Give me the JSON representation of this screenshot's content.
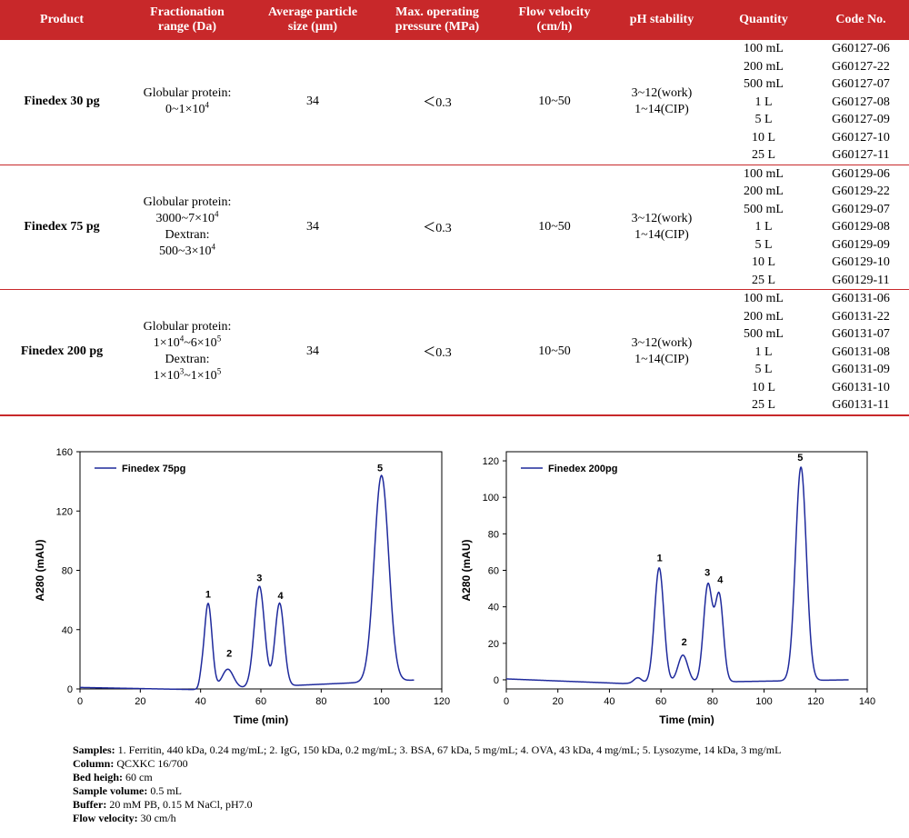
{
  "table": {
    "headers": [
      "Product",
      "Fractionation\nrange (Da)",
      "Average particle\nsize (μm)",
      "Max. operating\npressure (MPa)",
      "Flow velocity\n(cm/h)",
      "pH stability",
      "Quantity",
      "Code No."
    ],
    "rows": [
      {
        "product": "Finedex 30 pg",
        "range": [
          {
            "t": "Globular protein:"
          },
          {
            "t": "0~1×10",
            "sup": "4"
          }
        ],
        "size": "34",
        "pressure": "＜0.3",
        "flow": "10~50",
        "ph": [
          "3~12(work)",
          "1~14(CIP)"
        ],
        "quantities": [
          "100 mL",
          "200 mL",
          "500 mL",
          "1 L",
          "5 L",
          "10 L",
          "25 L"
        ],
        "codes": [
          "G60127-06",
          "G60127-22",
          "G60127-07",
          "G60127-08",
          "G60127-09",
          "G60127-10",
          "G60127-11"
        ]
      },
      {
        "product": "Finedex 75 pg",
        "range": [
          {
            "t": "Globular protein:"
          },
          {
            "t": "3000~7×10",
            "sup": "4"
          },
          {
            "t": "Dextran:"
          },
          {
            "t": "500~3×10",
            "sup": "4"
          }
        ],
        "size": "34",
        "pressure": "＜0.3",
        "flow": "10~50",
        "ph": [
          "3~12(work)",
          "1~14(CIP)"
        ],
        "quantities": [
          "100 mL",
          "200 mL",
          "500 mL",
          "1 L",
          "5 L",
          "10 L",
          "25 L"
        ],
        "codes": [
          "G60129-06",
          "G60129-22",
          "G60129-07",
          "G60129-08",
          "G60129-09",
          "G60129-10",
          "G60129-11"
        ]
      },
      {
        "product": "Finedex 200 pg",
        "range": [
          {
            "t": "Globular protein:"
          },
          {
            "t": "1×10",
            "sup": "4",
            "t2": "~6×10",
            "sup2": "5"
          },
          {
            "t": "Dextran:"
          },
          {
            "t": "1×10",
            "sup": "3",
            "t2": "~1×10",
            "sup2": "5"
          }
        ],
        "size": "34",
        "pressure": "＜0.3",
        "flow": "10~50",
        "ph": [
          "3~12(work)",
          "1~14(CIP)"
        ],
        "quantities": [
          "100 mL",
          "200 mL",
          "500 mL",
          "1 L",
          "5 L",
          "10 L",
          "25 L"
        ],
        "codes": [
          "G60131-06",
          "G60131-22",
          "G60131-07",
          "G60131-08",
          "G60131-09",
          "G60131-10",
          "G60131-11"
        ]
      }
    ]
  },
  "chart_data": [
    {
      "type": "line",
      "legend": "Finedex 75pg",
      "xlabel": "Time (min)",
      "ylabel": "A280 (mAU)",
      "xlim": [
        0,
        120
      ],
      "ylim": [
        0,
        160
      ],
      "xticks": [
        0,
        20,
        40,
        60,
        80,
        100,
        120
      ],
      "yticks": [
        0,
        40,
        80,
        120,
        160
      ],
      "line_color": "#1f2a9c",
      "series": [
        {
          "name": "Finedex 75pg",
          "baseline": [
            [
              0,
              1.0
            ],
            [
              40,
              -0.5
            ],
            [
              111,
              6
            ]
          ],
          "peaks": [
            {
              "center": 42.5,
              "height": 58,
              "sigma": 1.3
            },
            {
              "center": 49,
              "height": 13,
              "sigma": 1.9
            },
            {
              "center": 59.5,
              "height": 68,
              "sigma": 1.7
            },
            {
              "center": 66.2,
              "height": 56,
              "sigma": 1.5
            },
            {
              "center": 100,
              "height": 139,
              "sigma": 2.4
            },
            {
              "center": 40.2,
              "height": 4,
              "sigma": 0.6
            }
          ]
        }
      ],
      "annotations": [
        {
          "label": "1",
          "x": 42.5,
          "y": 58
        },
        {
          "label": "2",
          "x": 49.5,
          "y": 18
        },
        {
          "label": "3",
          "x": 59.5,
          "y": 69
        },
        {
          "label": "4",
          "x": 66.5,
          "y": 57
        },
        {
          "label": "5",
          "x": 99.5,
          "y": 143
        }
      ]
    },
    {
      "type": "line",
      "legend": "Finedex 200pg",
      "xlabel": "Time (min)",
      "ylabel": "A280 (mAU)",
      "xlim": [
        0,
        140
      ],
      "ylim": [
        -5,
        125
      ],
      "xticks": [
        0,
        20,
        40,
        60,
        80,
        100,
        120,
        140
      ],
      "yticks": [
        0,
        20,
        40,
        60,
        80,
        100,
        120
      ],
      "line_color": "#1f2a9c",
      "series": [
        {
          "name": "Finedex 200pg",
          "baseline": [
            [
              0,
              0.5
            ],
            [
              45,
              -2
            ],
            [
              133,
              0
            ]
          ],
          "peaks": [
            {
              "center": 59.3,
              "height": 63,
              "sigma": 1.8
            },
            {
              "center": 68.5,
              "height": 15,
              "sigma": 1.9
            },
            {
              "center": 78.2,
              "height": 53,
              "sigma": 1.7
            },
            {
              "center": 82.6,
              "height": 47,
              "sigma": 1.6
            },
            {
              "center": 114.3,
              "height": 117,
              "sigma": 2.1
            },
            {
              "center": 51,
              "height": 3,
              "sigma": 1.5
            }
          ]
        }
      ],
      "annotations": [
        {
          "label": "1",
          "x": 59.5,
          "y": 62
        },
        {
          "label": "2",
          "x": 69,
          "y": 16
        },
        {
          "label": "3",
          "x": 78,
          "y": 54
        },
        {
          "label": "4",
          "x": 83,
          "y": 50
        },
        {
          "label": "5",
          "x": 114,
          "y": 117
        }
      ]
    }
  ],
  "notes": [
    {
      "label": "Samples:",
      "value": " 1. Ferritin, 440 kDa, 0.24 mg/mL; 2. IgG, 150 kDa, 0.2 mg/mL; 3. BSA, 67 kDa, 5 mg/mL; 4. OVA, 43 kDa, 4 mg/mL; 5. Lysozyme, 14 kDa, 3 mg/mL"
    },
    {
      "label": "Column:",
      "value": " QCXKC 16/700"
    },
    {
      "label": "Bed heigh:",
      "value": " 60 cm"
    },
    {
      "label": "Sample volume:",
      "value": " 0.5 mL"
    },
    {
      "label": "Buffer:",
      "value": " 20 mM PB, 0.15 M NaCl, pH7.0"
    },
    {
      "label": "Flow velocity:",
      "value": " 30 cm/h"
    }
  ]
}
